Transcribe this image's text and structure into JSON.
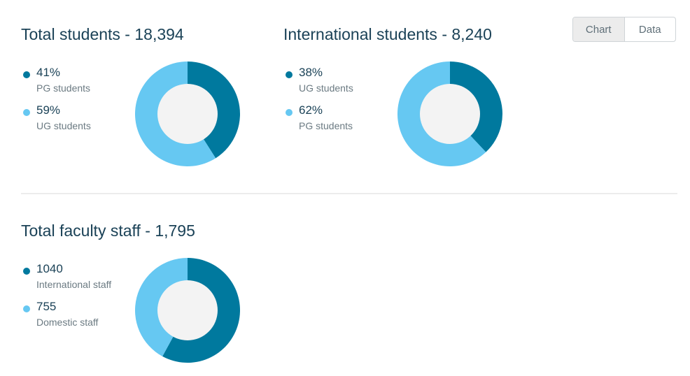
{
  "toggle": {
    "chart_label": "Chart",
    "data_label": "Data",
    "selected": "Chart"
  },
  "colors": {
    "dark": "#00799e",
    "light": "#66c8f2",
    "hole": "#f3f3f3"
  },
  "chart_data": [
    {
      "type": "pie",
      "title": "Total students - 18,394",
      "series": [
        {
          "name": "PG students",
          "value_label": "41%",
          "value": 41,
          "color": "#00799e"
        },
        {
          "name": "UG students",
          "value_label": "59%",
          "value": 59,
          "color": "#66c8f2"
        }
      ]
    },
    {
      "type": "pie",
      "title": "International students - 8,240",
      "series": [
        {
          "name": "UG students",
          "value_label": "38%",
          "value": 38,
          "color": "#00799e"
        },
        {
          "name": "PG students",
          "value_label": "62%",
          "value": 62,
          "color": "#66c8f2"
        }
      ]
    },
    {
      "type": "pie",
      "title": "Total faculty staff - 1,795",
      "series": [
        {
          "name": "International staff",
          "value_label": "1040",
          "value": 1040,
          "color": "#00799e"
        },
        {
          "name": "Domestic staff",
          "value_label": "755",
          "value": 755,
          "color": "#66c8f2"
        }
      ]
    }
  ]
}
